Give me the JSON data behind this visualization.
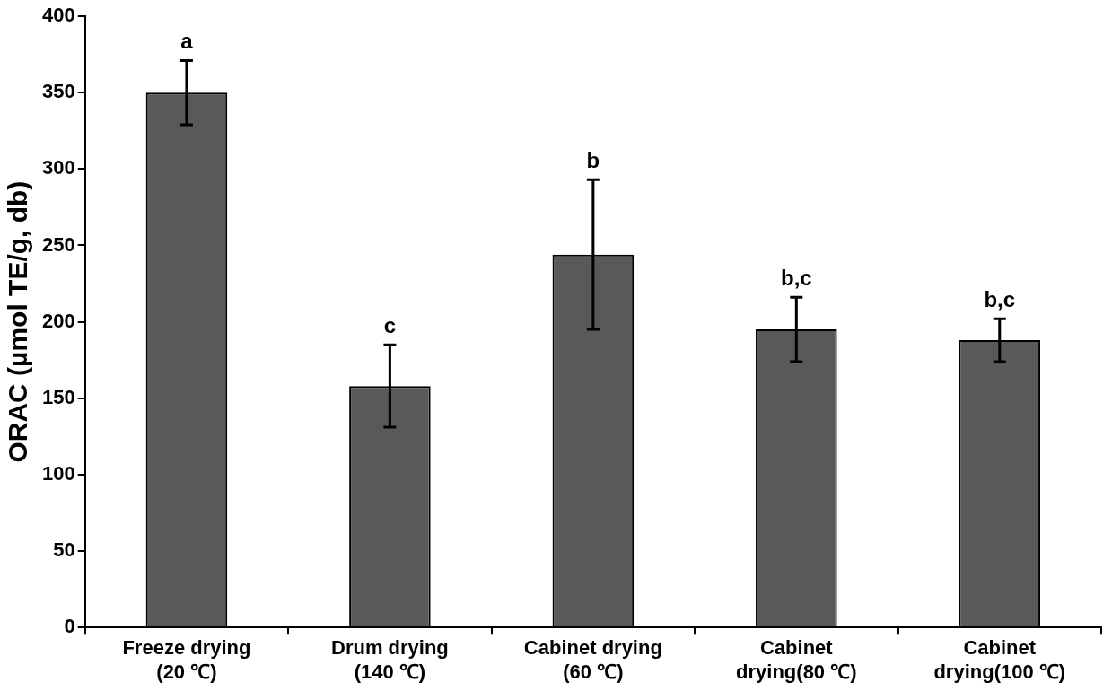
{
  "chart_data": {
    "type": "bar",
    "ylabel": "ORAC (µmol TE/g, db)",
    "categories": [
      "Freeze drying\n(20 ℃)",
      "Drum drying\n(140 ℃)",
      "Cabinet drying\n(60 ℃)",
      "Cabinet\ndrying(80 ℃)",
      "Cabinet\ndrying(100 ℃)"
    ],
    "values": [
      350,
      158,
      244,
      195,
      188
    ],
    "errors": [
      21,
      27,
      49,
      21,
      14
    ],
    "color": "#595959",
    "ylim": [
      0,
      400
    ],
    "yticks": [
      0,
      50,
      100,
      150,
      200,
      250,
      300,
      350,
      400
    ],
    "grid": false,
    "legend": false,
    "annotations": [
      {
        "text": "a",
        "x": "Freeze drying\n(20 ℃)",
        "y": 371
      },
      {
        "text": "c",
        "x": "Drum drying\n(140 ℃)",
        "y": 185
      },
      {
        "text": "b",
        "x": "Cabinet drying\n(60 ℃)",
        "y": 293
      },
      {
        "text": "b,c",
        "x": "Cabinet\ndrying(80 ℃)",
        "y": 216
      },
      {
        "text": "b,c",
        "x": "Cabinet\ndrying(100 ℃)",
        "y": 202
      }
    ]
  }
}
